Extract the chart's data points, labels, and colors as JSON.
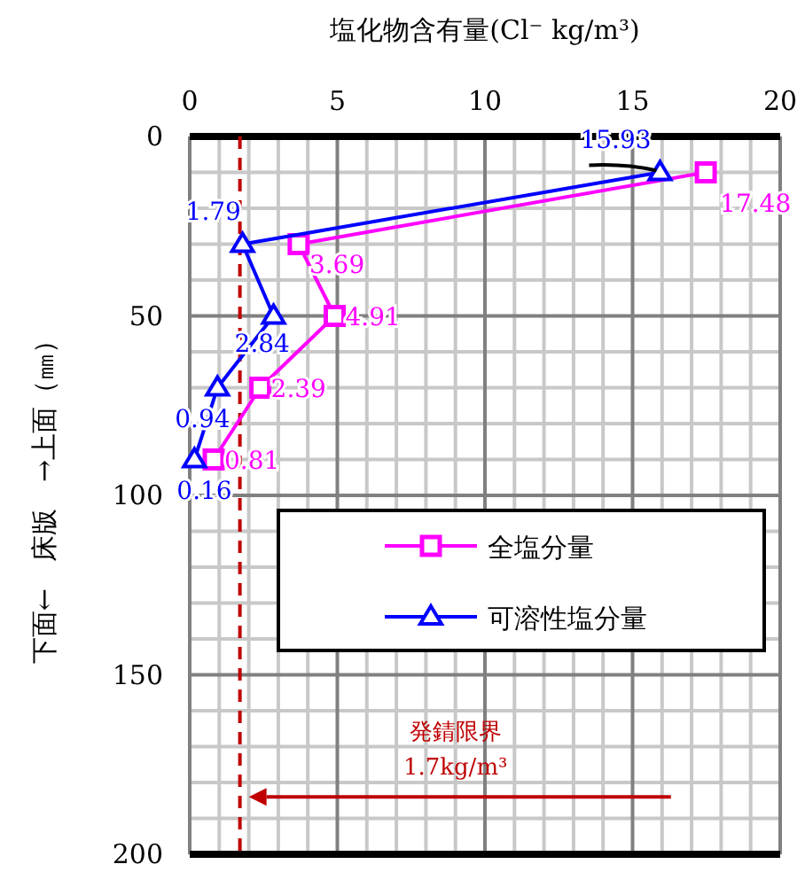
{
  "chart_data": {
    "type": "line",
    "xlabel": "塩化物含有量(Cl⁻ kg/m³)",
    "ylabel": "下面←　床版　→上面（㎜）",
    "orientation": "horizontal",
    "data_labels": true,
    "xlim": [
      0,
      20
    ],
    "xticks": [
      0,
      5,
      10,
      15,
      20
    ],
    "ylim": [
      200,
      0
    ],
    "yticks": [
      0,
      50,
      100,
      150,
      200
    ],
    "grid": true,
    "legend": "right",
    "line_style": "solid",
    "series": [
      {
        "name": "全塩分量",
        "color": "#ff00ff",
        "marker": "square",
        "values": [
          17.48,
          3.69,
          4.91,
          2.39,
          0.81
        ],
        "x": [
          10,
          30,
          50,
          70,
          90
        ]
      },
      {
        "name": "可溶性塩分量",
        "color": "#0000ff",
        "marker": "triangle",
        "values": [
          15.93,
          1.79,
          2.84,
          0.94,
          0.16
        ],
        "x": [
          10,
          30,
          50,
          70,
          90
        ]
      }
    ],
    "ref_lines": [
      {
        "axis": "x",
        "value": 1.7,
        "label": "発錆限界 1.7kg/m³",
        "color": "#c00000",
        "line_style": "dashed"
      }
    ]
  }
}
